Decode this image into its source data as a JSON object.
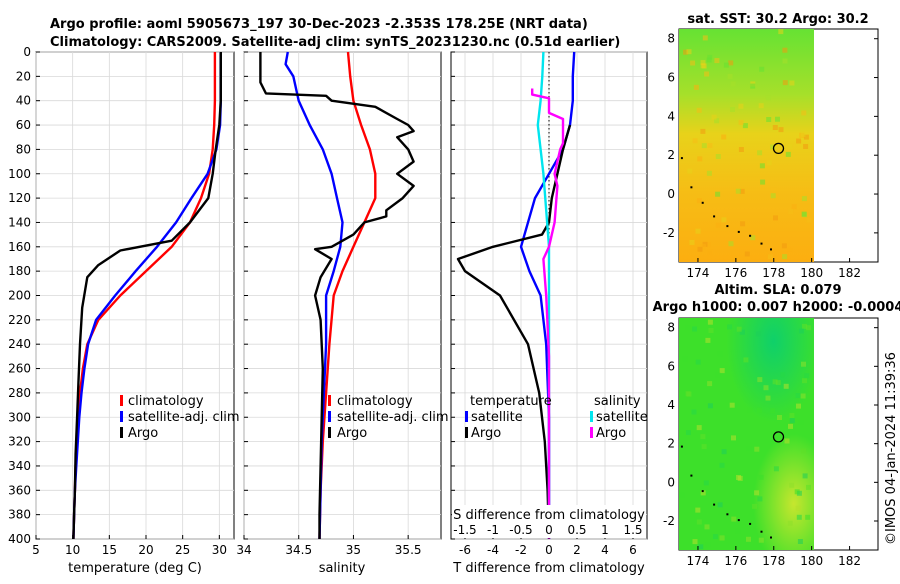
{
  "title": {
    "line1": "Argo profile: aoml 5905673_197 30-Dec-2023 -2.353S 178.25E (NRT data)",
    "line2": "Climatology: CARS2009. Satellite-adj clim: synTS_20231230.nc (0.51d earlier)"
  },
  "stamp": "©IMOS 04-Jan-2024 11:39:36",
  "colors": {
    "climatology": "#ff0000",
    "satellite": "#0000ff",
    "argo": "#000000",
    "sat_salinity": "#00e5ee",
    "argo_salinity": "#ff00ff"
  },
  "chart_data": [
    {
      "type": "line",
      "name": "temperature-profile",
      "xlabel": "temperature (deg C)",
      "ylabel": "depth",
      "xlim": [
        5,
        32
      ],
      "ylim": [
        0,
        400
      ],
      "xticks": [
        5,
        10,
        15,
        20,
        25,
        30
      ],
      "yticks": [
        0,
        20,
        40,
        60,
        80,
        100,
        120,
        140,
        160,
        180,
        200,
        220,
        240,
        260,
        280,
        300,
        320,
        340,
        360,
        380,
        400
      ],
      "legend": [
        "climatology",
        "satellite-adj. clim",
        "Argo"
      ],
      "series": [
        {
          "name": "climatology",
          "color": "red",
          "points": [
            [
              29.4,
              0
            ],
            [
              29.4,
              20
            ],
            [
              29.4,
              40
            ],
            [
              29.3,
              60
            ],
            [
              29.1,
              80
            ],
            [
              28.6,
              100
            ],
            [
              27.5,
              120
            ],
            [
              26,
              140
            ],
            [
              23.5,
              160
            ],
            [
              20,
              180
            ],
            [
              16.5,
              200
            ],
            [
              13.5,
              220
            ],
            [
              12,
              240
            ],
            [
              11.4,
              260
            ],
            [
              11,
              280
            ],
            [
              10.8,
              300
            ],
            [
              10.6,
              320
            ],
            [
              10.4,
              340
            ],
            [
              10.3,
              360
            ],
            [
              10.2,
              380
            ],
            [
              10.1,
              400
            ]
          ]
        },
        {
          "name": "satellite-adj. clim",
          "color": "blue",
          "points": [
            [
              30.2,
              0
            ],
            [
              30.2,
              20
            ],
            [
              30.2,
              40
            ],
            [
              30.1,
              60
            ],
            [
              29.6,
              80
            ],
            [
              28.4,
              100
            ],
            [
              26.2,
              120
            ],
            [
              24.1,
              140
            ],
            [
              21.5,
              160
            ],
            [
              18.6,
              180
            ],
            [
              15.8,
              200
            ],
            [
              13.2,
              220
            ],
            [
              12.1,
              240
            ],
            [
              11.6,
              260
            ],
            [
              11.2,
              280
            ],
            [
              10.9,
              300
            ],
            [
              10.7,
              320
            ],
            [
              10.5,
              340
            ],
            [
              10.3,
              360
            ],
            [
              10.2,
              380
            ],
            [
              10.1,
              400
            ]
          ]
        },
        {
          "name": "Argo",
          "color": "black",
          "points": [
            [
              30.2,
              0
            ],
            [
              30.2,
              20
            ],
            [
              30.2,
              40
            ],
            [
              30,
              60
            ],
            [
              29.5,
              80
            ],
            [
              29.1,
              100
            ],
            [
              28.5,
              120
            ],
            [
              26,
              140
            ],
            [
              23.5,
              155
            ],
            [
              16.5,
              163
            ],
            [
              13.5,
              175
            ],
            [
              12,
              185
            ],
            [
              11.3,
              210
            ],
            [
              11,
              240
            ],
            [
              10.8,
              270
            ],
            [
              10.6,
              300
            ],
            [
              10.4,
              330
            ],
            [
              10.3,
              360
            ],
            [
              10.2,
              380
            ],
            [
              10.1,
              400
            ]
          ]
        }
      ]
    },
    {
      "type": "line",
      "name": "salinity-profile",
      "xlabel": "salinity",
      "ylabel": "depth",
      "xlim": [
        34,
        35.8
      ],
      "ylim": [
        0,
        400
      ],
      "xticks": [
        34,
        34.5,
        35,
        35.5
      ],
      "legend": [
        "climatology",
        "satellite-adj. clim",
        "Argo"
      ],
      "series": [
        {
          "name": "climatology",
          "color": "red",
          "points": [
            [
              34.95,
              0
            ],
            [
              34.97,
              20
            ],
            [
              35.0,
              40
            ],
            [
              35.07,
              60
            ],
            [
              35.15,
              80
            ],
            [
              35.2,
              100
            ],
            [
              35.2,
              120
            ],
            [
              35.1,
              140
            ],
            [
              35.0,
              160
            ],
            [
              34.9,
              180
            ],
            [
              34.82,
              200
            ],
            [
              34.78,
              240
            ],
            [
              34.75,
              280
            ],
            [
              34.72,
              320
            ],
            [
              34.7,
              360
            ],
            [
              34.69,
              400
            ]
          ]
        },
        {
          "name": "satellite-adj. clim",
          "color": "blue",
          "points": [
            [
              34.4,
              0
            ],
            [
              34.38,
              10
            ],
            [
              34.45,
              20
            ],
            [
              34.5,
              40
            ],
            [
              34.6,
              60
            ],
            [
              34.72,
              80
            ],
            [
              34.8,
              100
            ],
            [
              34.85,
              120
            ],
            [
              34.9,
              140
            ],
            [
              34.88,
              160
            ],
            [
              34.82,
              180
            ],
            [
              34.75,
              200
            ],
            [
              34.75,
              240
            ],
            [
              34.73,
              280
            ],
            [
              34.71,
              320
            ],
            [
              34.7,
              360
            ],
            [
              34.69,
              400
            ]
          ]
        },
        {
          "name": "Argo",
          "color": "black",
          "points": [
            [
              34.15,
              0
            ],
            [
              34.15,
              25
            ],
            [
              34.2,
              34
            ],
            [
              34.75,
              36
            ],
            [
              34.8,
              40
            ],
            [
              35.2,
              45
            ],
            [
              35.4,
              55
            ],
            [
              35.5,
              60
            ],
            [
              35.55,
              65
            ],
            [
              35.4,
              70
            ],
            [
              35.5,
              80
            ],
            [
              35.55,
              90
            ],
            [
              35.4,
              100
            ],
            [
              35.55,
              110
            ],
            [
              35.45,
              120
            ],
            [
              35.3,
              130
            ],
            [
              35.3,
              135
            ],
            [
              35.1,
              140
            ],
            [
              35.0,
              150
            ],
            [
              34.8,
              160
            ],
            [
              34.65,
              162
            ],
            [
              34.8,
              170
            ],
            [
              34.7,
              185
            ],
            [
              34.65,
              200
            ],
            [
              34.7,
              220
            ],
            [
              34.72,
              260
            ],
            [
              34.71,
              300
            ],
            [
              34.7,
              340
            ],
            [
              34.69,
              380
            ],
            [
              34.69,
              400
            ]
          ]
        }
      ]
    },
    {
      "type": "line",
      "name": "difference-profile",
      "xlabel": "T difference from climatology",
      "x2label": "S difference from climatology",
      "xlim": [
        -7,
        7
      ],
      "x2lim": [
        -1.75,
        1.75
      ],
      "ylim": [
        0,
        400
      ],
      "xticks": [
        -6,
        -4,
        -2,
        0,
        2,
        4,
        6
      ],
      "x2ticks": [
        "-1.5",
        "-1",
        "-0.5",
        "0",
        "0.5",
        "1",
        "1.5"
      ],
      "legend_temperature_title": "temperature",
      "legend_salinity_title": "salinity",
      "legend_temperature": [
        "satellite",
        "Argo"
      ],
      "legend_salinity": [
        "satellite",
        "Argo"
      ],
      "series": [
        {
          "name": "T satellite",
          "color": "blue",
          "axis": "T",
          "points": [
            [
              1.8,
              0
            ],
            [
              1.7,
              20
            ],
            [
              1.7,
              40
            ],
            [
              1.5,
              60
            ],
            [
              1.0,
              80
            ],
            [
              0,
              100
            ],
            [
              -1,
              120
            ],
            [
              -1.5,
              140
            ],
            [
              -2,
              160
            ],
            [
              -1.4,
              180
            ],
            [
              -0.6,
              200
            ],
            [
              -0.2,
              240
            ],
            [
              0,
              300
            ],
            [
              0,
              360
            ],
            [
              0,
              400
            ]
          ]
        },
        {
          "name": "T Argo",
          "color": "black",
          "axis": "T",
          "points": [
            [
              1.5,
              60
            ],
            [
              1.0,
              80
            ],
            [
              0.6,
              100
            ],
            [
              0.2,
              120
            ],
            [
              0,
              140
            ],
            [
              -0.5,
              150
            ],
            [
              -4,
              160
            ],
            [
              -6.5,
              170
            ],
            [
              -6,
              180
            ],
            [
              -3.5,
              200
            ],
            [
              -1.5,
              240
            ],
            [
              -0.7,
              280
            ],
            [
              -0.3,
              320
            ],
            [
              -0.1,
              360
            ],
            [
              0,
              400
            ]
          ]
        },
        {
          "name": "S satellite",
          "color": "cyan",
          "axis": "S",
          "points": [
            [
              -0.1,
              0
            ],
            [
              -0.12,
              20
            ],
            [
              -0.15,
              40
            ],
            [
              -0.2,
              60
            ],
            [
              -0.15,
              80
            ],
            [
              -0.1,
              100
            ],
            [
              -0.05,
              130
            ],
            [
              0,
              160
            ],
            [
              0,
              200
            ],
            [
              0,
              250
            ],
            [
              0,
              300
            ],
            [
              0,
              350
            ],
            [
              0,
              400
            ]
          ]
        },
        {
          "name": "S Argo",
          "color": "magenta",
          "axis": "S",
          "points": [
            [
              -0.3,
              30
            ],
            [
              -0.3,
              35
            ],
            [
              0,
              38
            ],
            [
              0,
              50
            ],
            [
              0.25,
              55
            ],
            [
              0.25,
              75
            ],
            [
              0.2,
              80
            ],
            [
              0.1,
              100
            ],
            [
              0.15,
              110
            ],
            [
              0.1,
              140
            ],
            [
              0.0,
              160
            ],
            [
              -0.1,
              170
            ],
            [
              -0.05,
              200
            ],
            [
              0,
              250
            ],
            [
              0,
              300
            ],
            [
              0,
              360
            ],
            [
              0,
              400
            ]
          ]
        }
      ]
    },
    {
      "type": "heatmap",
      "name": "sst-map",
      "title": "sat. SST: 30.2 Argo: 30.2",
      "xlim": [
        173,
        183.5
      ],
      "ylim": [
        -3.5,
        8.5
      ],
      "xticks": [
        174,
        176,
        178,
        180,
        182
      ],
      "yticks": [
        -2,
        0,
        2,
        4,
        6,
        8
      ],
      "argo_position": [
        178.25,
        2.35
      ]
    },
    {
      "type": "heatmap",
      "name": "sla-map",
      "title": "Altim. SLA: 0.079",
      "subtitle": "Argo h1000: 0.007 h2000: -0.0004",
      "xlim": [
        173,
        183.5
      ],
      "ylim": [
        -3.5,
        8.5
      ],
      "xticks": [
        174,
        176,
        178,
        180,
        182
      ],
      "yticks": [
        -2,
        0,
        2,
        4,
        6,
        8
      ],
      "argo_position": [
        178.25,
        2.35
      ]
    }
  ]
}
